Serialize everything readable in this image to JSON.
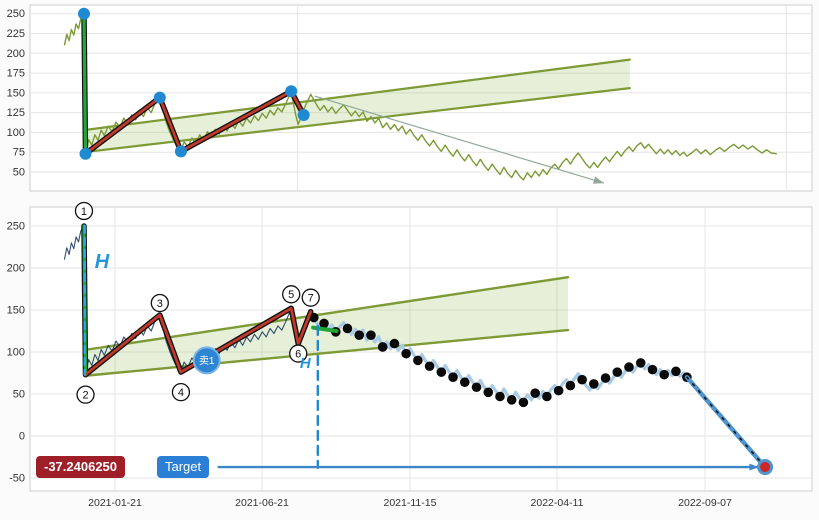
{
  "page": {
    "background": "#fbfbfb"
  },
  "badges": {
    "value": "-37.2406250",
    "value_bg": "#9e1f28",
    "target": "Target",
    "target_bg": "#2b7fd4",
    "sell_label": "卖1"
  },
  "series": [
    [
      4.4,
      210
    ],
    [
      4.7,
      224
    ],
    [
      5.0,
      216
    ],
    [
      5.3,
      230
    ],
    [
      5.6,
      223
    ],
    [
      5.9,
      237
    ],
    [
      6.2,
      231
    ],
    [
      6.5,
      244
    ],
    [
      6.9,
      250
    ],
    [
      7.0,
      160
    ],
    [
      7.1,
      73
    ],
    [
      7.5,
      91
    ],
    [
      7.9,
      84
    ],
    [
      8.3,
      97
    ],
    [
      8.7,
      90
    ],
    [
      9.1,
      103
    ],
    [
      9.5,
      96
    ],
    [
      10.0,
      108
    ],
    [
      10.5,
      101
    ],
    [
      11.0,
      113
    ],
    [
      11.5,
      106
    ],
    [
      12.0,
      118
    ],
    [
      12.5,
      111
    ],
    [
      13.0,
      122
    ],
    [
      13.5,
      116
    ],
    [
      14.0,
      127
    ],
    [
      14.5,
      120
    ],
    [
      15.0,
      131
    ],
    [
      15.5,
      125
    ],
    [
      16.0,
      137
    ],
    [
      16.3,
      141
    ],
    [
      16.6,
      144
    ],
    [
      17.0,
      129
    ],
    [
      17.4,
      113
    ],
    [
      17.9,
      100
    ],
    [
      18.4,
      89
    ],
    [
      18.9,
      80
    ],
    [
      19.3,
      76
    ],
    [
      19.7,
      88
    ],
    [
      20.2,
      82
    ],
    [
      20.7,
      93
    ],
    [
      21.2,
      86
    ],
    [
      21.7,
      97
    ],
    [
      22.2,
      90
    ],
    [
      22.7,
      101
    ],
    [
      23.2,
      94
    ],
    [
      23.7,
      104
    ],
    [
      24.2,
      98
    ],
    [
      24.7,
      108
    ],
    [
      25.2,
      102
    ],
    [
      25.7,
      112
    ],
    [
      26.2,
      105
    ],
    [
      26.7,
      115
    ],
    [
      27.2,
      108
    ],
    [
      27.7,
      118
    ],
    [
      28.2,
      112
    ],
    [
      28.7,
      121
    ],
    [
      29.2,
      115
    ],
    [
      29.7,
      124
    ],
    [
      30.2,
      118
    ],
    [
      30.7,
      128
    ],
    [
      31.2,
      122
    ],
    [
      31.7,
      131
    ],
    [
      32.2,
      126
    ],
    [
      32.7,
      136
    ],
    [
      33.0,
      143
    ],
    [
      33.4,
      152
    ],
    [
      33.7,
      136
    ],
    [
      34.0,
      121
    ],
    [
      34.3,
      110
    ],
    [
      34.7,
      121
    ],
    [
      35.1,
      131
    ],
    [
      35.5,
      140
    ],
    [
      35.9,
      148
    ],
    [
      36.3,
      141
    ],
    [
      36.7,
      134
    ],
    [
      37.1,
      128
    ],
    [
      37.6,
      134
    ],
    [
      38.1,
      126
    ],
    [
      38.6,
      132
    ],
    [
      39.1,
      124
    ],
    [
      39.6,
      130
    ],
    [
      40.1,
      135
    ],
    [
      40.6,
      128
    ],
    [
      41.1,
      121
    ],
    [
      41.6,
      127
    ],
    [
      42.1,
      120
    ],
    [
      42.6,
      126
    ],
    [
      43.1,
      114
    ],
    [
      43.6,
      120
    ],
    [
      44.1,
      112
    ],
    [
      44.6,
      118
    ],
    [
      45.1,
      106
    ],
    [
      45.6,
      112
    ],
    [
      46.1,
      104
    ],
    [
      46.6,
      110
    ],
    [
      47.1,
      102
    ],
    [
      47.6,
      108
    ],
    [
      48.1,
      98
    ],
    [
      48.6,
      104
    ],
    [
      49.1,
      96
    ],
    [
      49.6,
      90
    ],
    [
      50.1,
      97
    ],
    [
      50.6,
      89
    ],
    [
      51.1,
      83
    ],
    [
      51.6,
      90
    ],
    [
      52.1,
      82
    ],
    [
      52.6,
      76
    ],
    [
      53.1,
      84
    ],
    [
      53.6,
      76
    ],
    [
      54.1,
      70
    ],
    [
      54.6,
      78
    ],
    [
      55.1,
      70
    ],
    [
      55.6,
      64
    ],
    [
      56.1,
      72
    ],
    [
      56.6,
      64
    ],
    [
      57.1,
      58
    ],
    [
      57.6,
      66
    ],
    [
      58.1,
      58
    ],
    [
      58.6,
      52
    ],
    [
      59.1,
      60
    ],
    [
      59.6,
      53
    ],
    [
      60.1,
      47
    ],
    [
      60.6,
      56
    ],
    [
      61.1,
      48
    ],
    [
      61.6,
      43
    ],
    [
      62.1,
      52
    ],
    [
      62.6,
      45
    ],
    [
      63.1,
      40
    ],
    [
      63.6,
      49
    ],
    [
      64.1,
      43
    ],
    [
      64.6,
      51
    ],
    [
      65.1,
      45
    ],
    [
      65.6,
      53
    ],
    [
      66.1,
      47
    ],
    [
      66.6,
      55
    ],
    [
      67.1,
      60
    ],
    [
      67.6,
      54
    ],
    [
      68.1,
      62
    ],
    [
      68.6,
      67
    ],
    [
      69.1,
      60
    ],
    [
      69.6,
      68
    ],
    [
      70.1,
      74
    ],
    [
      70.6,
      67
    ],
    [
      71.1,
      60
    ],
    [
      71.6,
      55
    ],
    [
      72.1,
      62
    ],
    [
      72.6,
      56
    ],
    [
      73.1,
      63
    ],
    [
      73.6,
      69
    ],
    [
      74.1,
      63
    ],
    [
      74.6,
      70
    ],
    [
      75.1,
      76
    ],
    [
      75.6,
      70
    ],
    [
      76.1,
      77
    ],
    [
      76.6,
      82
    ],
    [
      77.1,
      76
    ],
    [
      77.6,
      83
    ],
    [
      78.1,
      87
    ],
    [
      78.6,
      80
    ],
    [
      79.1,
      85
    ],
    [
      79.6,
      79
    ],
    [
      80.1,
      73
    ],
    [
      80.6,
      79
    ],
    [
      81.1,
      73
    ],
    [
      81.6,
      78
    ],
    [
      82.1,
      72
    ],
    [
      82.6,
      77
    ],
    [
      83.1,
      71
    ],
    [
      83.6,
      75
    ],
    [
      84.0,
      70
    ],
    [
      84.6,
      74
    ],
    [
      85.2,
      79
    ],
    [
      85.8,
      73
    ],
    [
      86.4,
      78
    ],
    [
      87.0,
      72
    ],
    [
      87.6,
      77
    ],
    [
      88.2,
      81
    ],
    [
      88.8,
      76
    ],
    [
      89.4,
      81
    ],
    [
      90.0,
      85
    ],
    [
      90.6,
      80
    ],
    [
      91.2,
      84
    ],
    [
      91.8,
      79
    ],
    [
      92.4,
      83
    ],
    [
      93.0,
      78
    ],
    [
      93.6,
      74
    ],
    [
      94.2,
      78
    ],
    [
      94.8,
      74
    ],
    [
      95.5,
      73
    ]
  ],
  "chart_data": [
    {
      "type": "line",
      "name": "overview-chart",
      "title": "",
      "x_range": [
        0,
        100
      ],
      "y_range": [
        26,
        261
      ],
      "y_ticks": [
        250,
        225,
        200,
        175,
        150,
        125,
        100,
        75,
        50
      ],
      "x_grid": [
        34.2,
        96.7
      ],
      "x_ticks": [],
      "legend": "none",
      "grid": true,
      "pivots": [
        [
          6.9,
          250
        ],
        [
          7.1,
          73
        ],
        [
          16.6,
          144
        ],
        [
          19.3,
          76
        ],
        [
          33.4,
          152
        ],
        [
          35.0,
          122
        ]
      ],
      "layers": [
        {
          "type": "fill",
          "name": "trend-channel-fill",
          "points": [
            [
              6.9,
              103
            ],
            [
              76.7,
              192
            ],
            [
              76.7,
              156
            ],
            [
              6.9,
              75
            ]
          ],
          "fill": "rgba(139,186,80,0.22)"
        },
        {
          "type": "line",
          "name": "upper-trendline",
          "points": [
            [
              6.9,
              103
            ],
            [
              76.7,
              192
            ]
          ],
          "stroke": "#7d9a35",
          "width": 2.2
        },
        {
          "type": "line",
          "name": "lower-trendline",
          "points": [
            [
              6.9,
              75
            ],
            [
              76.7,
              156
            ]
          ],
          "stroke": "#7d9a35",
          "width": 2.2
        },
        {
          "type": "series",
          "name": "price-line",
          "stroke": "#7d9a35",
          "width": 1.4
        },
        {
          "type": "arrow",
          "name": "downtrend-arrow",
          "from": [
            36.4,
            146
          ],
          "to": [
            73.4,
            36
          ],
          "stroke": "#93a899",
          "width": 1.2,
          "head": 11
        },
        {
          "type": "line",
          "name": "zigzag-outline",
          "points": [
            [
              6.9,
              250
            ],
            [
              7.1,
              73
            ],
            [
              16.6,
              144
            ],
            [
              19.3,
              76
            ],
            [
              33.4,
              152
            ],
            [
              35.0,
              122
            ]
          ],
          "stroke": "#111111",
          "width": 5.5
        },
        {
          "type": "line",
          "name": "zigzag-impulse-segment",
          "points": [
            [
              6.9,
              250
            ],
            [
              7.1,
              73
            ]
          ],
          "stroke": "#21a637",
          "width": 3.2
        },
        {
          "type": "line",
          "name": "zigzag-body",
          "points": [
            [
              7.1,
              73
            ],
            [
              16.6,
              144
            ],
            [
              19.3,
              76
            ],
            [
              33.4,
              152
            ],
            [
              35.0,
              122
            ]
          ],
          "stroke": "#c0392b",
          "width": 2.8
        },
        {
          "type": "markers",
          "name": "pivot-dot",
          "points": [
            [
              6.9,
              250
            ],
            [
              7.1,
              73
            ],
            [
              16.6,
              144
            ],
            [
              19.3,
              76
            ],
            [
              33.4,
              152
            ],
            [
              35.0,
              122
            ]
          ],
          "r": 6,
          "fill": "#1f8ad2"
        }
      ]
    },
    {
      "type": "line",
      "name": "detail-chart",
      "title": "",
      "x_range": [
        0,
        100
      ],
      "y_range": [
        -65.5,
        272.6
      ],
      "y_ticks": [
        250,
        200,
        150,
        100,
        50,
        0,
        -50
      ],
      "x_grid": [
        10.87,
        29.67,
        48.59,
        67.39,
        86.32
      ],
      "x_ticks": [
        {
          "x": 10.87,
          "label": "2021-01-21"
        },
        {
          "x": 29.67,
          "label": "2021-06-21"
        },
        {
          "x": 48.59,
          "label": "2021-11-15"
        },
        {
          "x": 67.39,
          "label": "2022-04-11"
        },
        {
          "x": 86.32,
          "label": "2022-09-07"
        }
      ],
      "legend": "none",
      "grid": true,
      "target_value": -37.240625,
      "pivots": [
        [
          6.9,
          250
        ],
        [
          7.1,
          73
        ],
        [
          16.6,
          144
        ],
        [
          19.3,
          76
        ],
        [
          33.4,
          152
        ],
        [
          34.3,
          110
        ],
        [
          35.9,
          148
        ]
      ],
      "layers": [
        {
          "type": "fill",
          "name": "trend-channel-fill",
          "points": [
            [
              7.4,
              103
            ],
            [
              68.8,
              189
            ],
            [
              68.8,
              126
            ],
            [
              7.4,
              72
            ]
          ],
          "fill": "rgba(139,186,80,0.22)"
        },
        {
          "type": "line",
          "name": "upper-trendline",
          "points": [
            [
              7.4,
              103
            ],
            [
              68.8,
              189
            ]
          ],
          "stroke": "#7d9a35",
          "width": 2.4
        },
        {
          "type": "line",
          "name": "lower-trendline",
          "points": [
            [
              7.4,
              72
            ],
            [
              68.8,
              126
            ]
          ],
          "stroke": "#7d9a35",
          "width": 2.4
        },
        {
          "type": "series",
          "name": "price-line-raw",
          "to": 84,
          "stroke": "#1c3a5e",
          "width": 1.1,
          "opacity": 0.9
        },
        {
          "type": "series",
          "name": "price-line-smooth",
          "from": 36.3,
          "to": 84,
          "stroke": "#aacbe6",
          "width": 3.2
        },
        {
          "type": "dots",
          "name": "price-dot",
          "from": 36.3,
          "to": 84,
          "every": 3,
          "r": 4.8,
          "fill": "#0a0a0a"
        },
        {
          "type": "line",
          "name": "projection-line",
          "points": [
            [
              84,
              70
            ],
            [
              94,
              -37
            ]
          ],
          "stroke": "#4f94cd",
          "width": 4.5
        },
        {
          "type": "line",
          "name": "projection-dotted-overlay",
          "points": [
            [
              84,
              70
            ],
            [
              94,
              -37
            ]
          ],
          "stroke": "#111111",
          "width": 1.6,
          "dash": "2,7"
        },
        {
          "type": "line",
          "name": "zigzag-outline",
          "points": [
            [
              6.9,
              250
            ],
            [
              7.1,
              73
            ],
            [
              16.6,
              144
            ],
            [
              19.3,
              76
            ],
            [
              33.4,
              152
            ],
            [
              34.3,
              110
            ],
            [
              35.9,
              148
            ]
          ],
          "stroke": "#111111",
          "width": 5.5
        },
        {
          "type": "line",
          "name": "zigzag-impulse-segment",
          "points": [
            [
              6.9,
              250
            ],
            [
              7.1,
              73
            ]
          ],
          "stroke": "#21a637",
          "width": 3.2
        },
        {
          "type": "line",
          "name": "zigzag-body",
          "points": [
            [
              7.1,
              73
            ],
            [
              16.6,
              144
            ],
            [
              19.3,
              76
            ],
            [
              33.4,
              152
            ],
            [
              34.3,
              110
            ],
            [
              35.9,
              148
            ]
          ],
          "stroke": "#c0392b",
          "width": 2.8
        },
        {
          "type": "line",
          "name": "h-measure-dashed-line",
          "points": [
            [
              7.0,
              250
            ],
            [
              7.0,
              73
            ]
          ],
          "stroke": "#29abe2",
          "width": 2.4,
          "dash": "7,5"
        },
        {
          "type": "line",
          "name": "entry-segment",
          "points": [
            [
              36.2,
              129
            ],
            [
              39.2,
              125
            ]
          ],
          "stroke": "#21a637",
          "width": 4
        },
        {
          "type": "line",
          "name": "target-dashed-line",
          "points": [
            [
              36.8,
              131
            ],
            [
              36.8,
              -38
            ]
          ],
          "stroke": "#2288cc",
          "width": 2.4,
          "dash": "9,6"
        },
        {
          "type": "arrow",
          "name": "target-arrow",
          "from": [
            24.0,
            -37
          ],
          "to": [
            93.2,
            -37
          ],
          "stroke": "#3d86c8",
          "width": 2.4,
          "head": 10
        },
        {
          "type": "markers",
          "name": "target-dot",
          "points": [
            [
              94,
              -37
            ]
          ],
          "r": 6.5,
          "fill": "#cd2626",
          "stroke": "#4f94cd",
          "sw": 3
        },
        {
          "type": "numbers",
          "name": "pivot-number",
          "items": [
            {
              "n": "1",
              "x": 6.9,
              "v": 250,
              "dy": -15
            },
            {
              "n": "2",
              "x": 7.1,
              "v": 73,
              "dy": 20
            },
            {
              "n": "3",
              "x": 16.6,
              "v": 144,
              "dy": -12
            },
            {
              "n": "4",
              "x": 19.3,
              "v": 76,
              "dy": 20
            },
            {
              "n": "5",
              "x": 33.4,
              "v": 152,
              "dy": -14
            },
            {
              "n": "6",
              "x": 34.3,
              "v": 110,
              "dy": 10
            },
            {
              "n": "7",
              "x": 35.9,
              "v": 148,
              "dy": -14
            }
          ]
        },
        {
          "type": "texts",
          "name": "h-label",
          "items": [
            {
              "text": "H",
              "x": 9.2,
              "v": 200,
              "size": 20,
              "color": "#2196d9"
            },
            {
              "text": "H",
              "x": 35.2,
              "v": 81,
              "size": 15,
              "color": "#2196d9"
            }
          ]
        },
        {
          "type": "disc",
          "name": "sell-marker",
          "x": 22.6,
          "v": 90,
          "r": 13,
          "fill": "#2e86d3",
          "stroke": "#7ab5e6",
          "text": "卖1"
        }
      ]
    }
  ]
}
